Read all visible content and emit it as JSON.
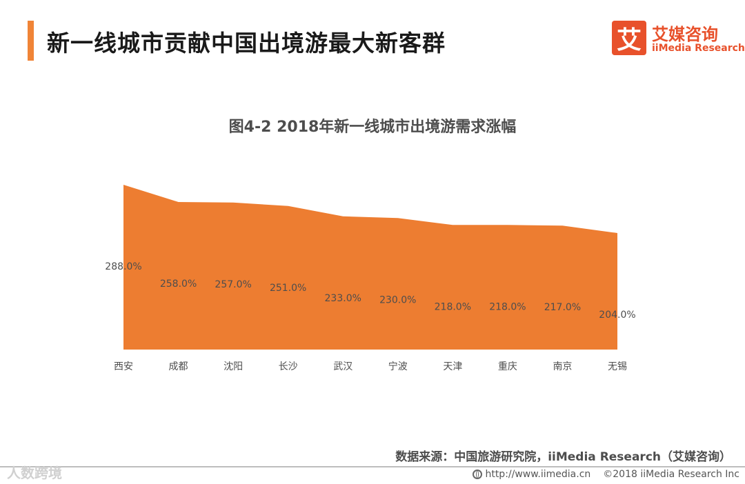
{
  "header": {
    "title": "新一线城市贡献中国出境游最大新客群",
    "logo_mark": "艾",
    "logo_cn": "艾媒咨询",
    "logo_en": "iiMedia Research"
  },
  "colors": {
    "accent": "#F08437",
    "area_fill": "#ED7D31",
    "brand": "#E8512B"
  },
  "chart_data": {
    "type": "area",
    "title": "图4-2 2018年新一线城市出境游需求涨幅",
    "categories": [
      "西安",
      "成都",
      "沈阳",
      "长沙",
      "武汉",
      "宁波",
      "天津",
      "重庆",
      "南京",
      "无锡"
    ],
    "values": [
      288.0,
      258.0,
      257.0,
      251.0,
      233.0,
      230.0,
      218.0,
      218.0,
      217.0,
      204.0
    ],
    "value_labels": [
      "288.0%",
      "258.0%",
      "257.0%",
      "251.0%",
      "233.0%",
      "230.0%",
      "218.0%",
      "218.0%",
      "217.0%",
      "204.0%"
    ],
    "unit": "%",
    "xlabel": "",
    "ylabel": "",
    "ylim": [
      0,
      290
    ],
    "grid": false,
    "legend": "none"
  },
  "footer": {
    "source": "数据来源：中国旅游研究院，iiMedia Research（艾媒咨询）",
    "watermark": "人数跨境",
    "url": "http://www.iimedia.cn",
    "copyright": "©2018  iiMedia Research  Inc"
  }
}
